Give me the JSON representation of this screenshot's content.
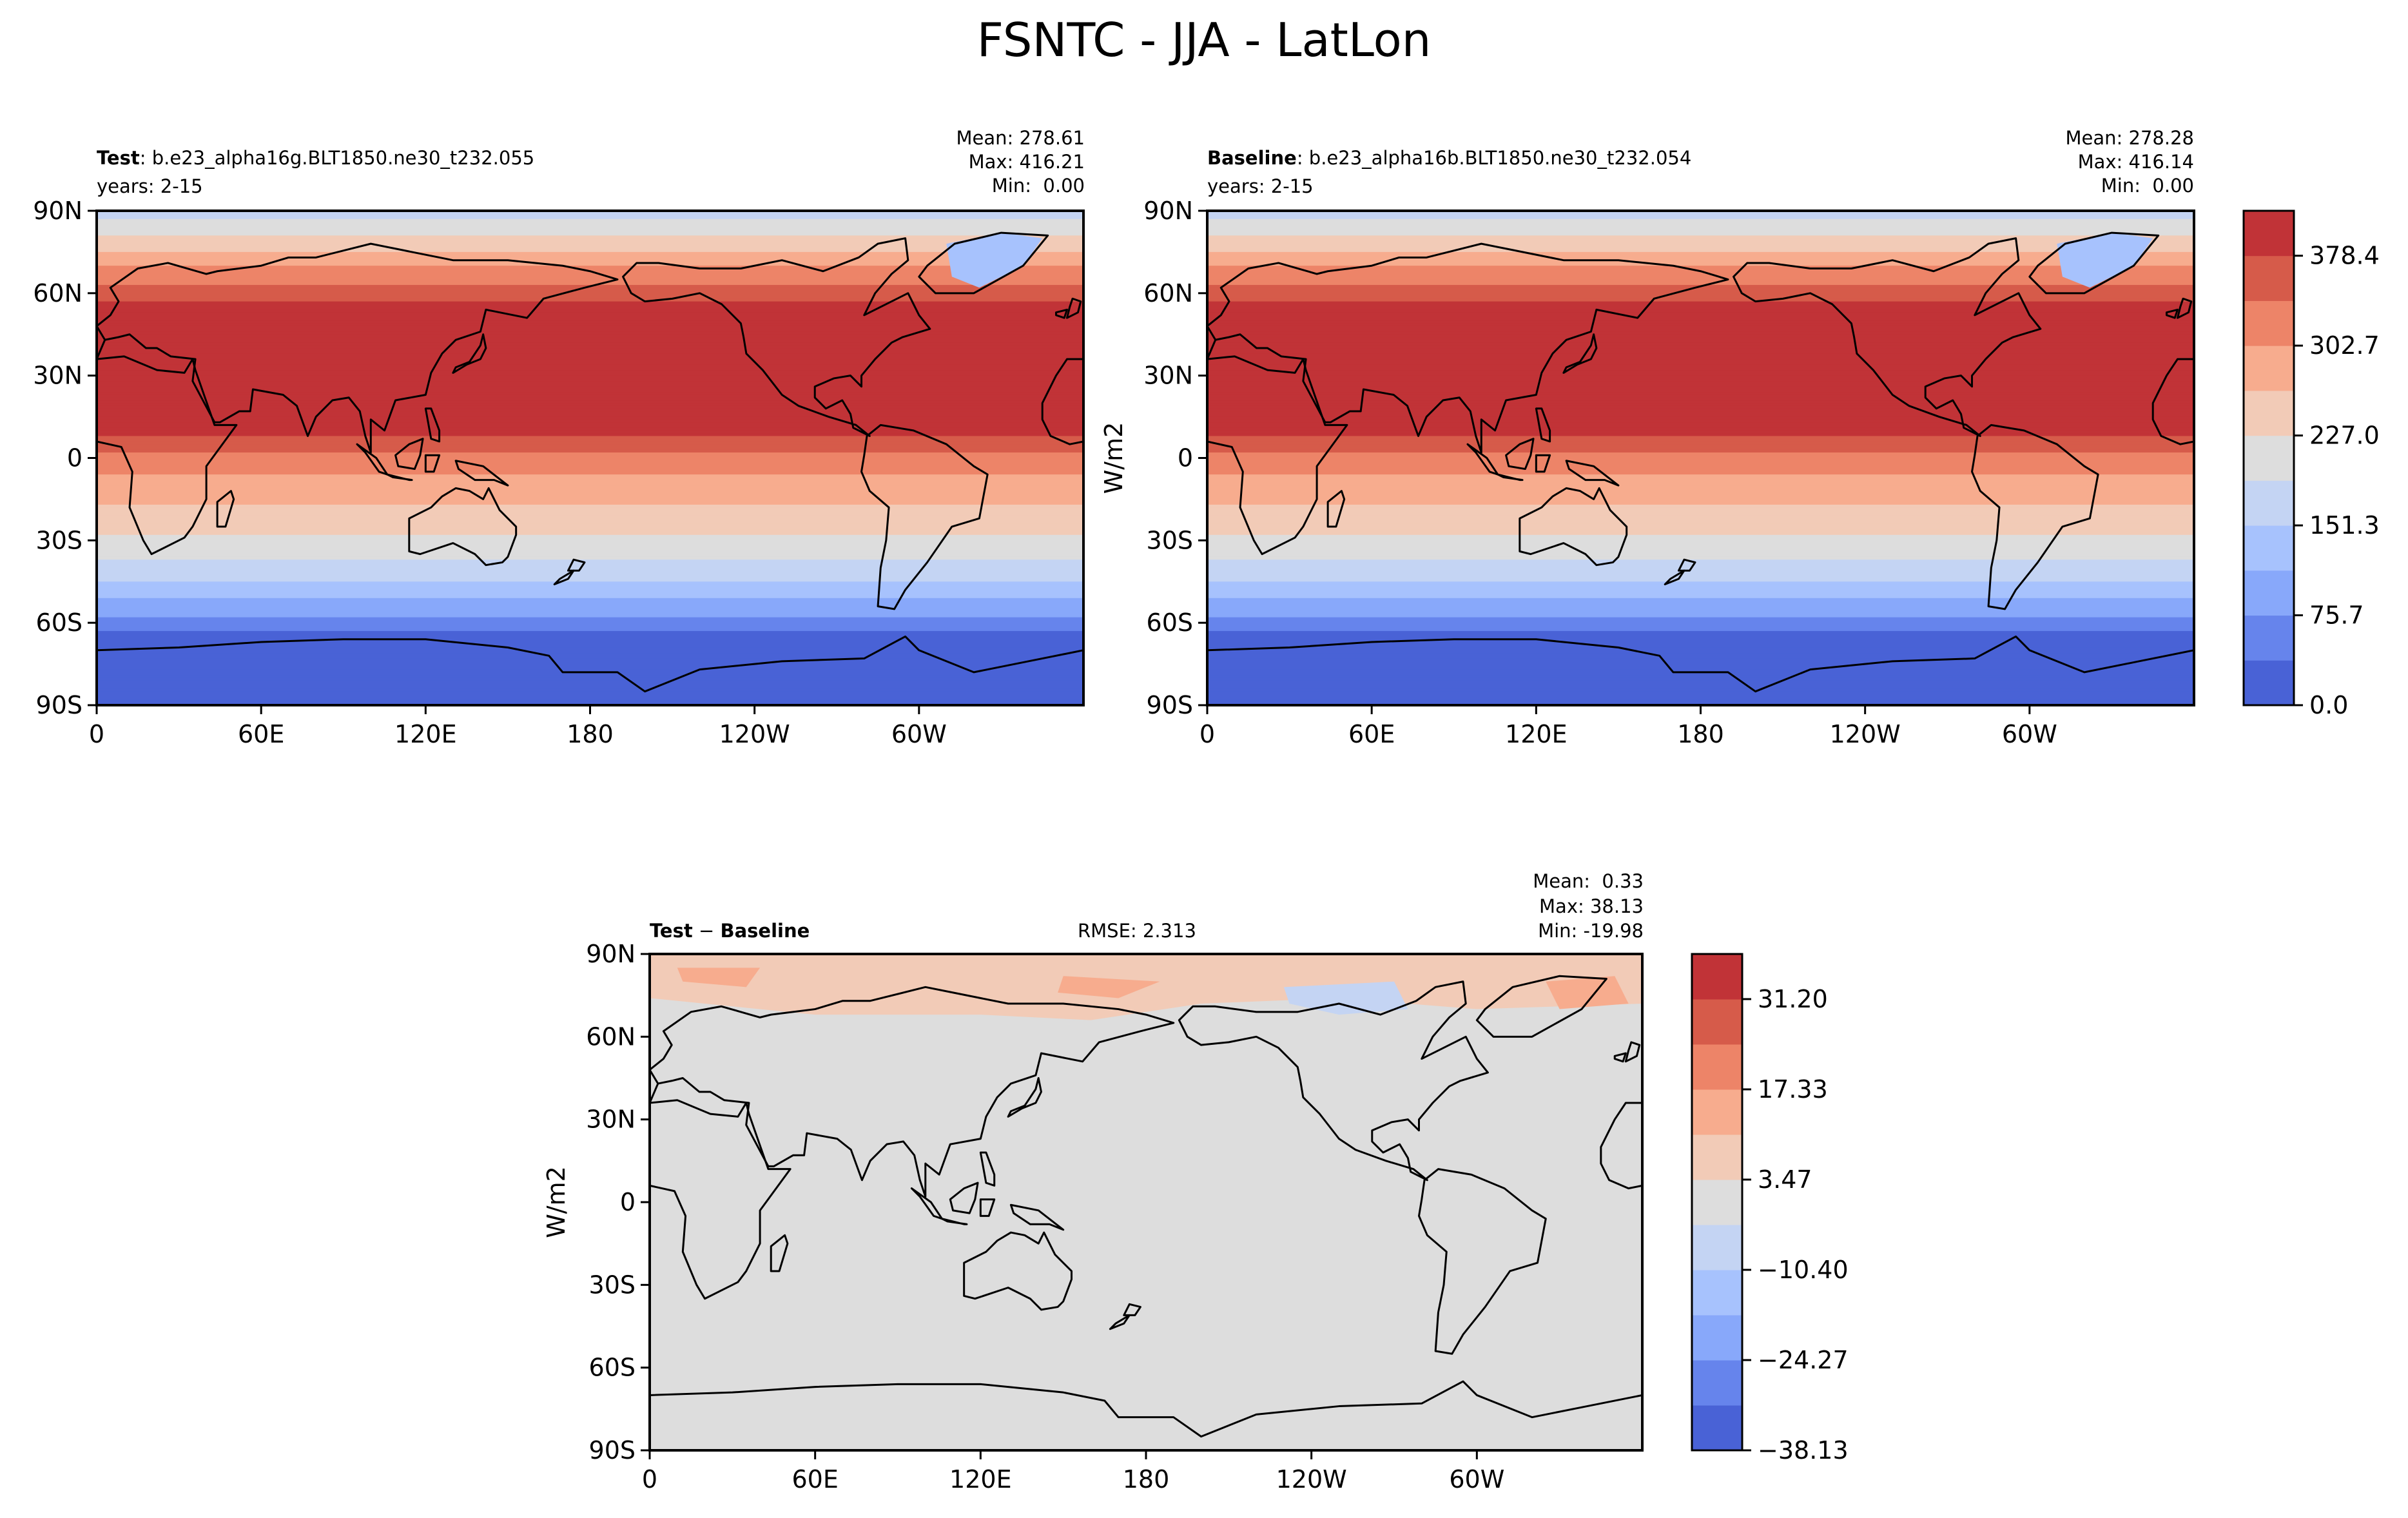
{
  "title": "FSNTC - JJA - LatLon",
  "panels": [
    {
      "id": "test",
      "label_bold": "Test",
      "label_rest": ": b.e23_alpha16g.BLT1850.ne30_t232.055",
      "years": "years: 2-15",
      "stats": {
        "mean": "Mean: 278.61",
        "max": "Max: 416.21",
        "min": "Min:  0.00"
      },
      "ylabel": ""
    },
    {
      "id": "baseline",
      "label_bold": "Baseline",
      "label_rest": ": b.e23_alpha16b.BLT1850.ne30_t232.054",
      "years": "years: 2-15",
      "stats": {
        "mean": "Mean: 278.28",
        "max": "Max: 416.14",
        "min": "Min:  0.00"
      },
      "ylabel": "W/m2"
    },
    {
      "id": "diff",
      "label_bold": "Test",
      "label_sep": " − ",
      "label_bold2": "Baseline",
      "rmse": "RMSE: 2.313",
      "stats": {
        "mean": "Mean:  0.33",
        "max": "Max: 38.13",
        "min": "Min: -19.98"
      },
      "ylabel": "W/m2"
    }
  ],
  "chart_data": [
    {
      "type": "heatmap",
      "map": "filled contour, lat-lon, coastlines",
      "title": "Test",
      "xlabel": "",
      "ylabel": "",
      "xticks": [
        "0",
        "60E",
        "120E",
        "180",
        "120W",
        "60W"
      ],
      "yticks": [
        "90N",
        "60N",
        "30N",
        "0",
        "30S",
        "60S",
        "90S"
      ],
      "xlim": [
        0,
        360
      ],
      "ylim": [
        -90,
        90
      ],
      "zonal_profile": {
        "lat": [
          90,
          80,
          70,
          62,
          55,
          45,
          35,
          20,
          10,
          5,
          0,
          -5,
          -10,
          -15,
          -20,
          -25,
          -30,
          -35,
          -40,
          -45,
          -50,
          -55,
          -60,
          -65,
          -90
        ],
        "value": [
          170,
          235,
          300,
          345,
          390,
          400,
          400,
          400,
          395,
          360,
          330,
          305,
          285,
          270,
          255,
          240,
          220,
          200,
          175,
          150,
          120,
          95,
          60,
          25,
          0
        ]
      }
    },
    {
      "type": "heatmap",
      "map": "filled contour, lat-lon, coastlines",
      "title": "Baseline",
      "xlabel": "",
      "ylabel": "W/m2",
      "xticks": [
        "0",
        "60E",
        "120E",
        "180",
        "120W",
        "60W"
      ],
      "yticks": [
        "90N",
        "60N",
        "30N",
        "0",
        "30S",
        "60S",
        "90S"
      ],
      "xlim": [
        0,
        360
      ],
      "ylim": [
        -90,
        90
      ],
      "colorbar": {
        "ticks": [
          "0.0",
          "75.7",
          "151.3",
          "227.0",
          "302.7",
          "378.4"
        ],
        "levels": [
          0,
          37.8,
          75.7,
          113.5,
          151.3,
          189.2,
          227.0,
          264.8,
          302.7,
          340.5,
          378.4,
          416.2
        ],
        "colors": [
          "#4962d6",
          "#6684ec",
          "#88a8fa",
          "#a7c2fd",
          "#c4d4f3",
          "#dddddd",
          "#f2cbb7",
          "#f7ac8e",
          "#ed8468",
          "#d65b4a",
          "#c13337"
        ]
      },
      "zonal_profile": {
        "lat": [
          90,
          80,
          70,
          62,
          55,
          45,
          35,
          20,
          10,
          5,
          0,
          -5,
          -10,
          -15,
          -20,
          -25,
          -30,
          -35,
          -40,
          -45,
          -50,
          -55,
          -60,
          -65,
          -90
        ],
        "value": [
          170,
          235,
          300,
          345,
          390,
          400,
          400,
          400,
          395,
          360,
          330,
          305,
          285,
          270,
          255,
          240,
          220,
          200,
          175,
          150,
          120,
          95,
          60,
          25,
          0
        ]
      }
    },
    {
      "type": "heatmap",
      "map": "filled contour, lat-lon, coastlines",
      "title": "Test − Baseline",
      "xlabel": "",
      "ylabel": "W/m2",
      "xticks": [
        "0",
        "60E",
        "120E",
        "180",
        "120W",
        "60W"
      ],
      "yticks": [
        "90N",
        "60N",
        "30N",
        "0",
        "30S",
        "60S",
        "90S"
      ],
      "xlim": [
        0,
        360
      ],
      "ylim": [
        -90,
        90
      ],
      "colorbar": {
        "ticks": [
          "−38.13",
          "−24.27",
          "−10.40",
          "3.47",
          "17.33",
          "31.20"
        ],
        "levels": [
          -38.13,
          -31.2,
          -24.27,
          -17.33,
          -10.4,
          -3.47,
          3.47,
          10.4,
          17.33,
          24.27,
          31.2,
          38.13
        ],
        "colors": [
          "#4962d6",
          "#6684ec",
          "#88a8fa",
          "#a7c2fd",
          "#c4d4f3",
          "#dddddd",
          "#f2cbb7",
          "#f7ac8e",
          "#ed8468",
          "#d65b4a",
          "#c13337"
        ]
      },
      "background_value": 0
    }
  ]
}
